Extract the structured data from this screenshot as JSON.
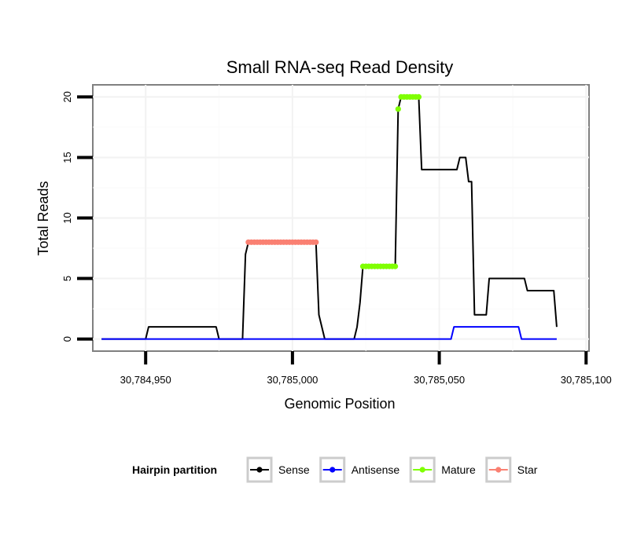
{
  "chart_data": {
    "type": "line",
    "title": "Small RNA-seq Read Density",
    "xlabel": "Genomic Position",
    "ylabel": "Total Reads",
    "xlim": [
      30784932,
      30785101
    ],
    "ylim": [
      -1,
      21
    ],
    "x_ticks": [
      {
        "value": 30784950,
        "label": "30,784,950"
      },
      {
        "value": 30785000,
        "label": "30,785,000"
      },
      {
        "value": 30785050,
        "label": "30,785,050"
      },
      {
        "value": 30785100,
        "label": "30,785,100"
      }
    ],
    "y_ticks": [
      {
        "value": 0,
        "label": "0"
      },
      {
        "value": 5,
        "label": "5"
      },
      {
        "value": 10,
        "label": "10"
      },
      {
        "value": 15,
        "label": "15"
      },
      {
        "value": 20,
        "label": "20"
      }
    ],
    "grid": true,
    "legend": {
      "title": "Hairpin partition",
      "position": "bottom",
      "entries": [
        {
          "label": "Sense",
          "color": "#000000"
        },
        {
          "label": "Antisense",
          "color": "#0000ff"
        },
        {
          "label": "Mature",
          "color": "#7fff00"
        },
        {
          "label": "Star",
          "color": "#fa8072"
        }
      ]
    },
    "series": [
      {
        "name": "Sense",
        "color": "#000000",
        "style": "line",
        "points": [
          [
            30784935,
            0
          ],
          [
            30784950,
            0
          ],
          [
            30784951,
            1
          ],
          [
            30784974,
            1
          ],
          [
            30784975,
            0
          ],
          [
            30784983,
            0
          ],
          [
            30784984,
            7
          ],
          [
            30784985,
            8
          ],
          [
            30785008,
            8
          ],
          [
            30785009,
            2
          ],
          [
            30785011,
            0
          ],
          [
            30785021,
            0
          ],
          [
            30785022,
            1
          ],
          [
            30785023,
            3
          ],
          [
            30785024,
            6
          ],
          [
            30785035,
            6
          ],
          [
            30785036,
            19
          ],
          [
            30785037,
            20
          ],
          [
            30785043,
            20
          ],
          [
            30785044,
            14
          ],
          [
            30785056,
            14
          ],
          [
            30785057,
            15
          ],
          [
            30785059,
            15
          ],
          [
            30785060,
            13
          ],
          [
            30785061,
            13
          ],
          [
            30785062,
            2
          ],
          [
            30785066,
            2
          ],
          [
            30785067,
            5
          ],
          [
            30785079,
            5
          ],
          [
            30785080,
            4
          ],
          [
            30785089,
            4
          ],
          [
            30785090,
            1
          ]
        ]
      },
      {
        "name": "Antisense",
        "color": "#0000ff",
        "style": "line",
        "points": [
          [
            30784935,
            0
          ],
          [
            30785054,
            0
          ],
          [
            30785055,
            1
          ],
          [
            30785077,
            1
          ],
          [
            30785078,
            0
          ],
          [
            30785090,
            0
          ]
        ]
      },
      {
        "name": "Mature",
        "color": "#7fff00",
        "style": "points",
        "points": [
          [
            30785024,
            6
          ],
          [
            30785025,
            6
          ],
          [
            30785026,
            6
          ],
          [
            30785027,
            6
          ],
          [
            30785028,
            6
          ],
          [
            30785029,
            6
          ],
          [
            30785030,
            6
          ],
          [
            30785031,
            6
          ],
          [
            30785032,
            6
          ],
          [
            30785033,
            6
          ],
          [
            30785034,
            6
          ],
          [
            30785035,
            6
          ],
          [
            30785036,
            19
          ],
          [
            30785037,
            20
          ],
          [
            30785038,
            20
          ],
          [
            30785039,
            20
          ],
          [
            30785040,
            20
          ],
          [
            30785041,
            20
          ],
          [
            30785042,
            20
          ],
          [
            30785043,
            20
          ]
        ]
      },
      {
        "name": "Star",
        "color": "#fa8072",
        "style": "points",
        "points": [
          [
            30784985,
            8
          ],
          [
            30784986,
            8
          ],
          [
            30784987,
            8
          ],
          [
            30784988,
            8
          ],
          [
            30784989,
            8
          ],
          [
            30784990,
            8
          ],
          [
            30784991,
            8
          ],
          [
            30784992,
            8
          ],
          [
            30784993,
            8
          ],
          [
            30784994,
            8
          ],
          [
            30784995,
            8
          ],
          [
            30784996,
            8
          ],
          [
            30784997,
            8
          ],
          [
            30784998,
            8
          ],
          [
            30784999,
            8
          ],
          [
            30785000,
            8
          ],
          [
            30785001,
            8
          ],
          [
            30785002,
            8
          ],
          [
            30785003,
            8
          ],
          [
            30785004,
            8
          ],
          [
            30785005,
            8
          ],
          [
            30785006,
            8
          ],
          [
            30785007,
            8
          ],
          [
            30785008,
            8
          ]
        ]
      }
    ]
  }
}
